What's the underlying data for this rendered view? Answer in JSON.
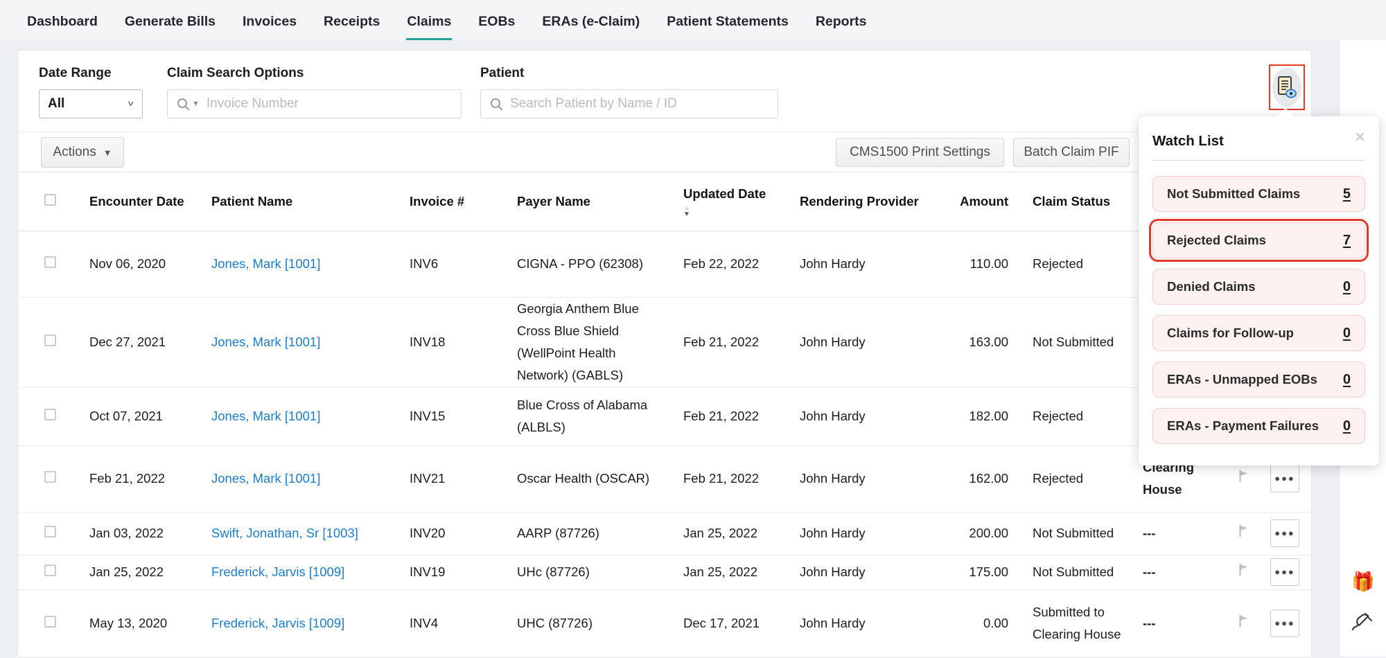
{
  "nav": {
    "items": [
      {
        "label": "Dashboard",
        "active": false
      },
      {
        "label": "Generate Bills",
        "active": false
      },
      {
        "label": "Invoices",
        "active": false
      },
      {
        "label": "Receipts",
        "active": false
      },
      {
        "label": "Claims",
        "active": true
      },
      {
        "label": "EOBs",
        "active": false
      },
      {
        "label": "ERAs (e-Claim)",
        "active": false
      },
      {
        "label": "Patient Statements",
        "active": false
      },
      {
        "label": "Reports",
        "active": false
      }
    ]
  },
  "filters": {
    "date_range_label": "Date Range",
    "date_range_value": "All",
    "claim_search_label": "Claim Search Options",
    "claim_search_placeholder": "Invoice Number",
    "patient_label": "Patient",
    "patient_placeholder": "Search Patient by Name / ID"
  },
  "toolbar": {
    "actions_label": "Actions",
    "cms_button_label": "CMS1500 Print Settings",
    "batch_button_label": "Batch Claim PIF"
  },
  "table": {
    "columns": [
      "Encounter Date",
      "Patient Name",
      "Invoice #",
      "Payer Name",
      "Updated Date",
      "Rendering Provider",
      "Amount",
      "Claim Status"
    ],
    "sorted_column": "Updated Date",
    "rows": [
      {
        "encounter_date": "Nov 06, 2020",
        "patient": "Jones, Mark [1001]",
        "invoice": "INV6",
        "payer": "CIGNA - PPO (62308)",
        "updated": "Feb 22, 2022",
        "provider": "John Hardy",
        "amount": "110.00",
        "status": "Rejected",
        "extra_status": "",
        "extra_red": false
      },
      {
        "encounter_date": "Dec 27, 2021",
        "patient": "Jones, Mark [1001]",
        "invoice": "INV18",
        "payer": "Georgia Anthem Blue Cross Blue Shield (WellPoint Health Network) (GABLS)",
        "updated": "Feb 21, 2022",
        "provider": "John Hardy",
        "amount": "163.00",
        "status": "Not Submitted",
        "extra_status": "",
        "extra_red": false
      },
      {
        "encounter_date": "Oct 07, 2021",
        "patient": "Jones, Mark [1001]",
        "invoice": "INV15",
        "payer": "Blue Cross of Alabama (ALBLS)",
        "updated": "Feb 21, 2022",
        "provider": "John Hardy",
        "amount": "182.00",
        "status": "Rejected",
        "extra_status": "",
        "extra_red": false
      },
      {
        "encounter_date": "Feb 21, 2022",
        "patient": "Jones, Mark [1001]",
        "invoice": "INV21",
        "payer": "Oscar Health (OSCAR)",
        "updated": "Feb 21, 2022",
        "provider": "John Hardy",
        "amount": "162.00",
        "status": "Rejected",
        "extra_status": "Clearing House",
        "extra_red": true
      },
      {
        "encounter_date": "Jan 03, 2022",
        "patient": "Swift, Jonathan, Sr [1003]",
        "invoice": "INV20",
        "payer": "AARP (87726)",
        "updated": "Jan 25, 2022",
        "provider": "John Hardy",
        "amount": "200.00",
        "status": "Not Submitted",
        "extra_status": "---",
        "extra_red": false
      },
      {
        "encounter_date": "Jan 25, 2022",
        "patient": "Frederick, Jarvis [1009]",
        "invoice": "INV19",
        "payer": "UHc (87726)",
        "updated": "Jan 25, 2022",
        "provider": "John Hardy",
        "amount": "175.00",
        "status": "Not Submitted",
        "extra_status": "---",
        "extra_red": false
      },
      {
        "encounter_date": "May 13, 2020",
        "patient": "Frederick, Jarvis [1009]",
        "invoice": "INV4",
        "payer": "UHC (87726)",
        "updated": "Dec 17, 2021",
        "provider": "John Hardy",
        "amount": "0.00",
        "status": "Submitted to Clearing House",
        "extra_status": "---",
        "extra_red": false
      }
    ]
  },
  "watch_list": {
    "title": "Watch List",
    "items": [
      {
        "label": "Not Submitted Claims",
        "count": "5",
        "highlighted": false
      },
      {
        "label": "Rejected Claims",
        "count": "7",
        "highlighted": true
      },
      {
        "label": "Denied Claims",
        "count": "0",
        "highlighted": false
      },
      {
        "label": "Claims for Follow-up",
        "count": "0",
        "highlighted": false
      },
      {
        "label": "ERAs - Unmapped EOBs",
        "count": "0",
        "highlighted": false
      },
      {
        "label": "ERAs - Payment Failures",
        "count": "0",
        "highlighted": false
      }
    ]
  },
  "colors": {
    "accent_teal": "#2aa198",
    "link_blue": "#1f7cc7",
    "alert_red": "#e8352e",
    "highlight_red": "#e13a2c",
    "watch_item_bg": "#fdf2f1",
    "watch_item_border": "#f5cdc8"
  }
}
